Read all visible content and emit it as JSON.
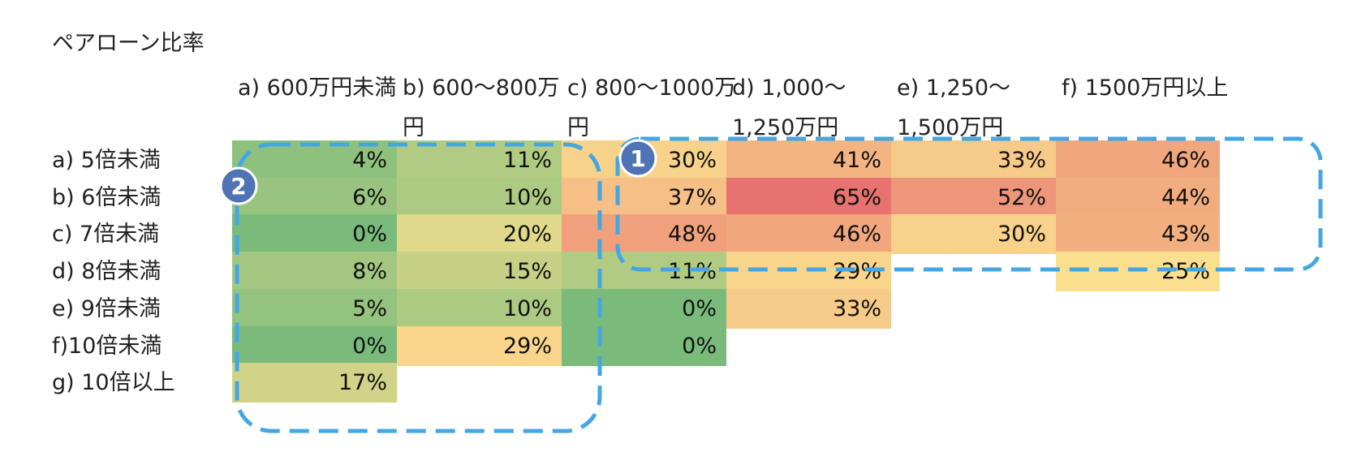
{
  "title": "ペアローン比率",
  "chart_data": {
    "type": "heatmap",
    "title": "ペアローン比率",
    "columns": [
      "a) 600万円未満",
      "b) 600～800万円",
      "c) 800～1000万円",
      "d) 1,000～1,250万円",
      "e) 1,250～1,500万円",
      "f) 1500万円以上"
    ],
    "rows": [
      "a) 5倍未満",
      "b) 6倍未満",
      "c) 7倍未満",
      "d) 8倍未満",
      "e) 9倍未満",
      "f)10倍未満",
      "g) 10倍以上"
    ],
    "values": [
      [
        4,
        11,
        30,
        41,
        33,
        46
      ],
      [
        6,
        10,
        37,
        65,
        52,
        44
      ],
      [
        0,
        20,
        48,
        46,
        30,
        43
      ],
      [
        8,
        15,
        11,
        29,
        null,
        25
      ],
      [
        5,
        10,
        0,
        33,
        null,
        null
      ],
      [
        0,
        29,
        0,
        null,
        null,
        null
      ],
      [
        17,
        null,
        null,
        null,
        null,
        null
      ]
    ],
    "value_suffix": "%",
    "color_scale": {
      "low": "#7ABB7B",
      "mid": "#FAE08E",
      "high": "#E8726F"
    },
    "annotations": [
      {
        "label": "1",
        "color": "#4F73B4",
        "dash_color": "#44A6E3"
      },
      {
        "label": "2",
        "color": "#4F73B4",
        "dash_color": "#44A6E3"
      }
    ]
  }
}
